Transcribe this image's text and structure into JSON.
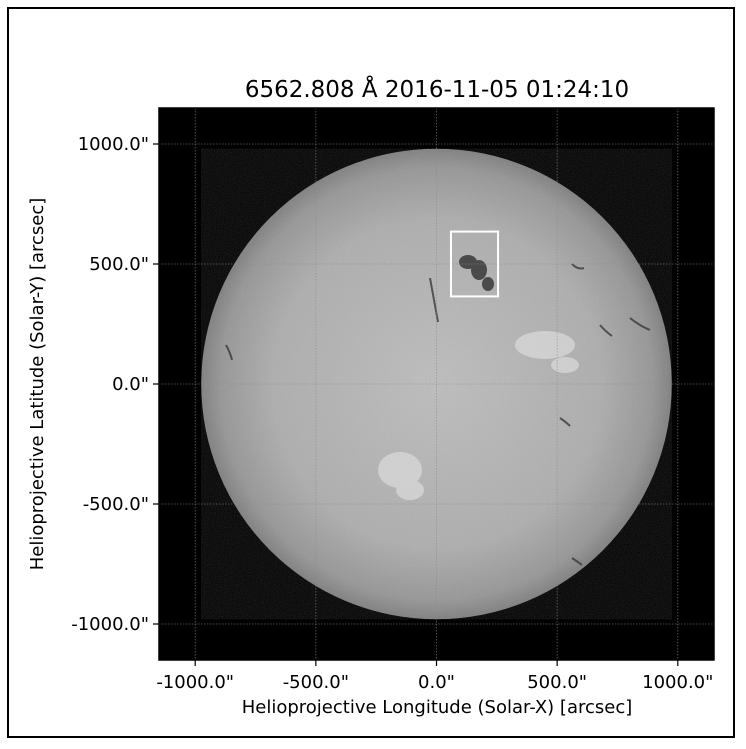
{
  "chart_data": {
    "type": "heatmap",
    "title": "6562.808 Å 2016-11-05 01:24:10",
    "xlabel": "Helioprojective Longitude (Solar-X) [arcsec]",
    "ylabel": "Helioprojective Latitude (Solar-Y) [arcsec]",
    "xlim": [
      -1150,
      1150
    ],
    "ylim": [
      -1150,
      1150
    ],
    "x_ticks": [
      -1000,
      -500,
      0,
      500,
      1000
    ],
    "x_tick_labels": [
      "-1000.0\"",
      "-500.0\"",
      "0.0\"",
      "500.0\"",
      "1000.0\""
    ],
    "y_ticks": [
      1000,
      500,
      0,
      -500,
      -1000
    ],
    "y_tick_labels": [
      "1000.0\"",
      "500.0\"",
      "0.0\"",
      "-500.0\"",
      "-1000.0\""
    ],
    "grid": true,
    "solar_radius_arcsec": 975,
    "colormap": "grayscale",
    "highlight_box": {
      "x_range": [
        60,
        255
      ],
      "y_range": [
        365,
        635
      ],
      "color": "#ffffff"
    },
    "colors": {
      "background": "#000000",
      "disk_center": "#bdbdbd",
      "disk_limb": "#7e7e7e",
      "grid": "#8a8a8a",
      "box": "#ffffff"
    }
  }
}
